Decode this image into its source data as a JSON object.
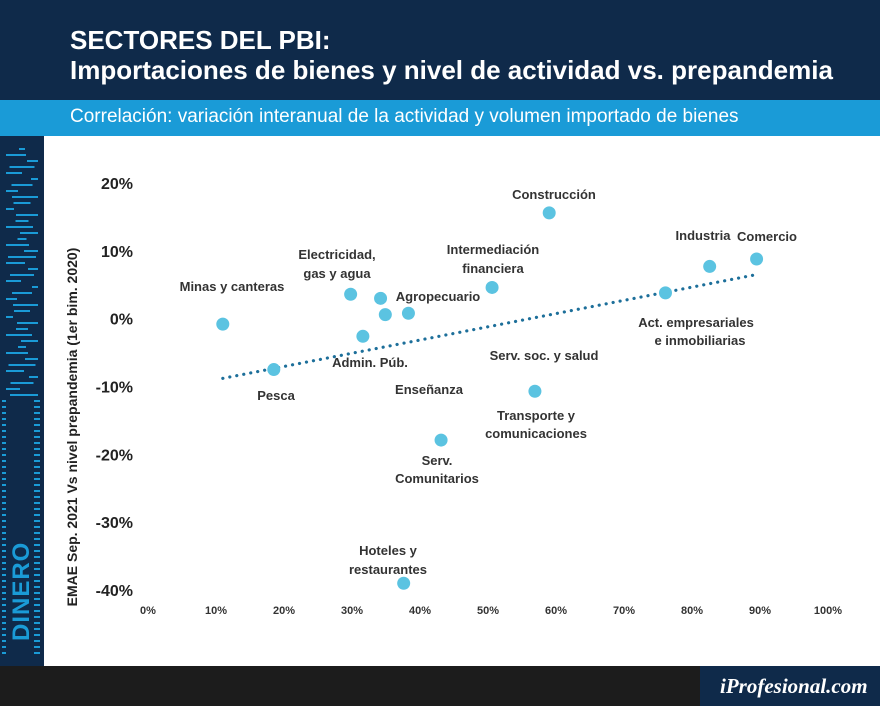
{
  "header": {
    "title_line1": "SECTORES DEL PBI:",
    "title_line2": "Importaciones de bienes y nivel de actividad vs. prepandemia",
    "subtitle": "Correlación: variación interanual de la actividad y volumen importado de bienes"
  },
  "brand": {
    "side_label": "DINERO",
    "logo": "iProfesional.com"
  },
  "colors": {
    "navy": "#0f2a4a",
    "accent": "#1a9bd7",
    "point": "#5bc3e1",
    "trend": "#1d6f9a"
  },
  "chart_data": {
    "type": "scatter",
    "xlabel": "",
    "ylabel": "EMAE Sep. 2021 Vs nivel prepandemia (1er bim. 2020)",
    "xlim": [
      0,
      100
    ],
    "ylim": [
      -40,
      20
    ],
    "x_ticks": [
      "0%",
      "10%",
      "20%",
      "30%",
      "40%",
      "50%",
      "60%",
      "70%",
      "80%",
      "90%",
      "100%"
    ],
    "y_ticks": [
      "20%",
      "10%",
      "0%",
      "-10%",
      "-20%",
      "-30%",
      "-40%"
    ],
    "grid": false,
    "trendline": {
      "x": [
        11,
        89.5
      ],
      "y": [
        -8.8,
        6.5
      ],
      "style": "dotted"
    },
    "points": [
      {
        "label": "Minas y canteras",
        "x": 11,
        "y": -0.8
      },
      {
        "label": "Pesca",
        "x": 18.5,
        "y": -7.5
      },
      {
        "label": "Electricidad, gas y agua",
        "x": 29.8,
        "y": 3.6
      },
      {
        "label": "Agropecuario",
        "x": 34.2,
        "y": 3
      },
      {
        "label": "",
        "x": 34.9,
        "y": 0.6
      },
      {
        "label": "",
        "x": 38.3,
        "y": 0.8
      },
      {
        "label": "Admin. Púb.",
        "x": 31.6,
        "y": -2.6
      },
      {
        "label": "Hoteles y restaurantes",
        "x": 37.6,
        "y": -39
      },
      {
        "label": "Serv. Comunitarios",
        "x": 43.1,
        "y": -17.9
      },
      {
        "label": "Intermediación financiera",
        "x": 50.6,
        "y": 4.6
      },
      {
        "label": "Construcción",
        "x": 59,
        "y": 15.6
      },
      {
        "label": "Transporte y comunicaciones",
        "x": 56.9,
        "y": -10.7
      },
      {
        "label": "Act. empresariales e inmobiliarias",
        "x": 76.1,
        "y": 3.8
      },
      {
        "label": "Industria",
        "x": 82.6,
        "y": 7.7
      },
      {
        "label": "Comercio",
        "x": 89.5,
        "y": 8.8
      }
    ],
    "annotations": [
      "Serv. soc. y salud",
      "Enseñanza"
    ]
  }
}
